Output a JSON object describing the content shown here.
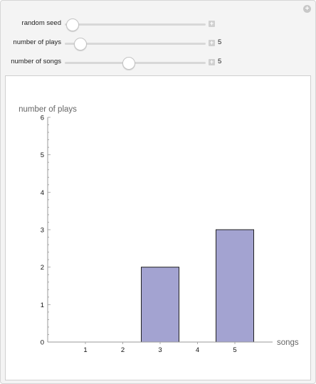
{
  "controls": [
    {
      "label": "random seed",
      "value": "",
      "fraction": 0.05,
      "show_value": false
    },
    {
      "label": "number of plays",
      "value": "5",
      "fraction": 0.105,
      "show_value": true
    },
    {
      "label": "number of songs",
      "value": "5",
      "fraction": 0.45,
      "show_value": true
    }
  ],
  "chart_data": {
    "type": "bar",
    "categories": [
      "1",
      "2",
      "3",
      "4",
      "5"
    ],
    "values": [
      0,
      0,
      2,
      0,
      3
    ],
    "xlabel": "songs",
    "ylabel": "number of plays",
    "ylim": [
      0,
      6
    ],
    "y_ticks": [
      0,
      1,
      2,
      3,
      4,
      5,
      6
    ],
    "bar_color": "#a3a3d1",
    "bar_edge_color": "#222222",
    "grid": false
  }
}
